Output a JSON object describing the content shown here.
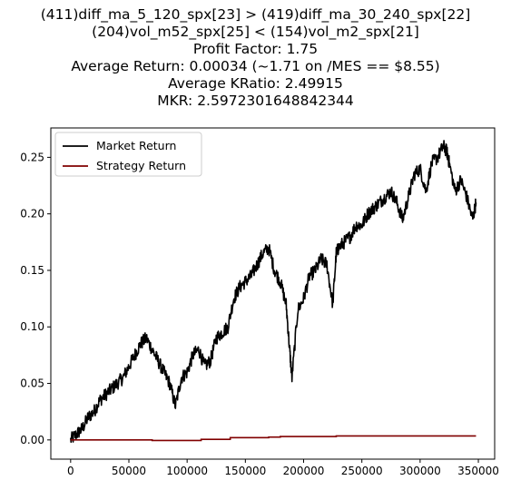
{
  "chart_data": {
    "type": "line",
    "title_lines": [
      "(411)diff_ma_5_120_spx[23] > (419)diff_ma_30_240_spx[22]",
      "(204)vol_m52_spx[25] < (154)vol_m2_spx[21]",
      "Profit Factor: 1.75",
      "Average Return: 0.00034 (~1.71 on /MES == $8.55)",
      "Average KRatio: 2.49915",
      "MKR: 2.5972301648842344"
    ],
    "xlabel": "",
    "ylabel": "",
    "xlim": [
      -17000,
      364000
    ],
    "ylim": [
      -0.017,
      0.276
    ],
    "x_ticks": [
      0,
      50000,
      100000,
      150000,
      200000,
      250000,
      300000,
      350000
    ],
    "y_ticks": [
      0.0,
      0.05,
      0.1,
      0.15,
      0.2,
      0.25
    ],
    "y_tick_labels": [
      "0.00",
      "0.05",
      "0.10",
      "0.15",
      "0.20",
      "0.25"
    ],
    "grid": false,
    "legend_position": "top-left",
    "series": [
      {
        "name": "Market Return",
        "color": "#000000",
        "x": [
          0,
          5000,
          10000,
          15000,
          20000,
          25000,
          30000,
          35000,
          40000,
          45000,
          50000,
          55000,
          60000,
          65000,
          70000,
          75000,
          80000,
          85000,
          90000,
          95000,
          100000,
          105000,
          110000,
          115000,
          120000,
          125000,
          130000,
          135000,
          140000,
          145000,
          150000,
          155000,
          160000,
          165000,
          170000,
          175000,
          180000,
          185000,
          188000,
          190000,
          195000,
          200000,
          205000,
          210000,
          215000,
          220000,
          225000,
          228000,
          230000,
          235000,
          240000,
          245000,
          250000,
          255000,
          260000,
          265000,
          270000,
          275000,
          280000,
          285000,
          290000,
          295000,
          300000,
          305000,
          310000,
          315000,
          320000,
          323000,
          325000,
          330000,
          335000,
          340000,
          345000,
          348000
        ],
        "values": [
          0.0,
          0.005,
          0.01,
          0.02,
          0.025,
          0.035,
          0.04,
          0.045,
          0.05,
          0.055,
          0.065,
          0.075,
          0.085,
          0.09,
          0.08,
          0.07,
          0.06,
          0.05,
          0.03,
          0.055,
          0.06,
          0.075,
          0.08,
          0.065,
          0.07,
          0.09,
          0.095,
          0.1,
          0.125,
          0.135,
          0.14,
          0.145,
          0.155,
          0.165,
          0.17,
          0.15,
          0.14,
          0.12,
          0.08,
          0.055,
          0.115,
          0.125,
          0.145,
          0.15,
          0.16,
          0.155,
          0.12,
          0.165,
          0.17,
          0.175,
          0.18,
          0.19,
          0.19,
          0.2,
          0.205,
          0.21,
          0.215,
          0.22,
          0.21,
          0.195,
          0.215,
          0.235,
          0.24,
          0.22,
          0.245,
          0.25,
          0.26,
          0.255,
          0.245,
          0.22,
          0.23,
          0.215,
          0.195,
          0.21
        ]
      },
      {
        "name": "Strategy Return",
        "color": "#800000",
        "x": [
          0,
          70000,
          70000,
          112000,
          112000,
          137000,
          137000,
          170000,
          170000,
          180000,
          180000,
          228000,
          228000,
          348000
        ],
        "values": [
          0.0,
          0.0,
          -0.0005,
          -0.0005,
          0.0005,
          0.0005,
          0.002,
          0.002,
          0.0025,
          0.0025,
          0.003,
          0.003,
          0.0035,
          0.0035
        ]
      }
    ]
  }
}
